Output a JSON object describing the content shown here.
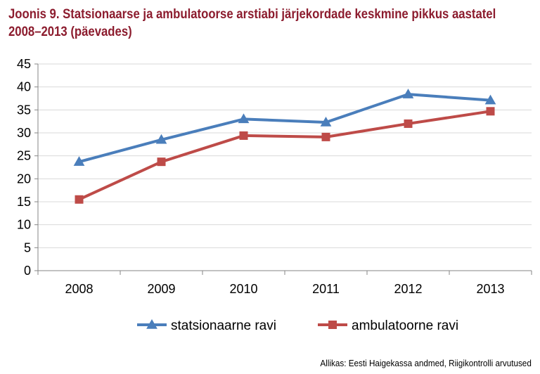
{
  "title_line1": "Joonis 9. Statsionaarse ja ambulatoorse arstiabi järjekordade keskmine pikkus aastatel",
  "title_line2": "2008–2013 (päevades)",
  "source": "Allikas: Eesti Haigekassa andmed, Riigikontrolli arvutused",
  "chart_data": {
    "type": "line",
    "title": "Joonis 9. Statsionaarse ja ambulatoorse arstiabi järjekordade keskmine pikkus aastatel 2008–2013 (päevades)",
    "categories": [
      "2008",
      "2009",
      "2010",
      "2011",
      "2012",
      "2013"
    ],
    "y_ticks": [
      "0",
      "5",
      "10",
      "15",
      "20",
      "25",
      "30",
      "35",
      "40",
      "45"
    ],
    "ylim": [
      0,
      45
    ],
    "grid": true,
    "legend_position": "bottom",
    "series": [
      {
        "name": "statsionaarne ravi",
        "color": "#4a7ebb",
        "marker": "triangle",
        "values": [
          23.7,
          28.5,
          33.0,
          32.3,
          38.4,
          37.1
        ]
      },
      {
        "name": "ambulatoorne ravi",
        "color": "#be4b48",
        "marker": "square",
        "values": [
          15.5,
          23.7,
          29.4,
          29.1,
          32.0,
          34.7
        ]
      }
    ]
  }
}
